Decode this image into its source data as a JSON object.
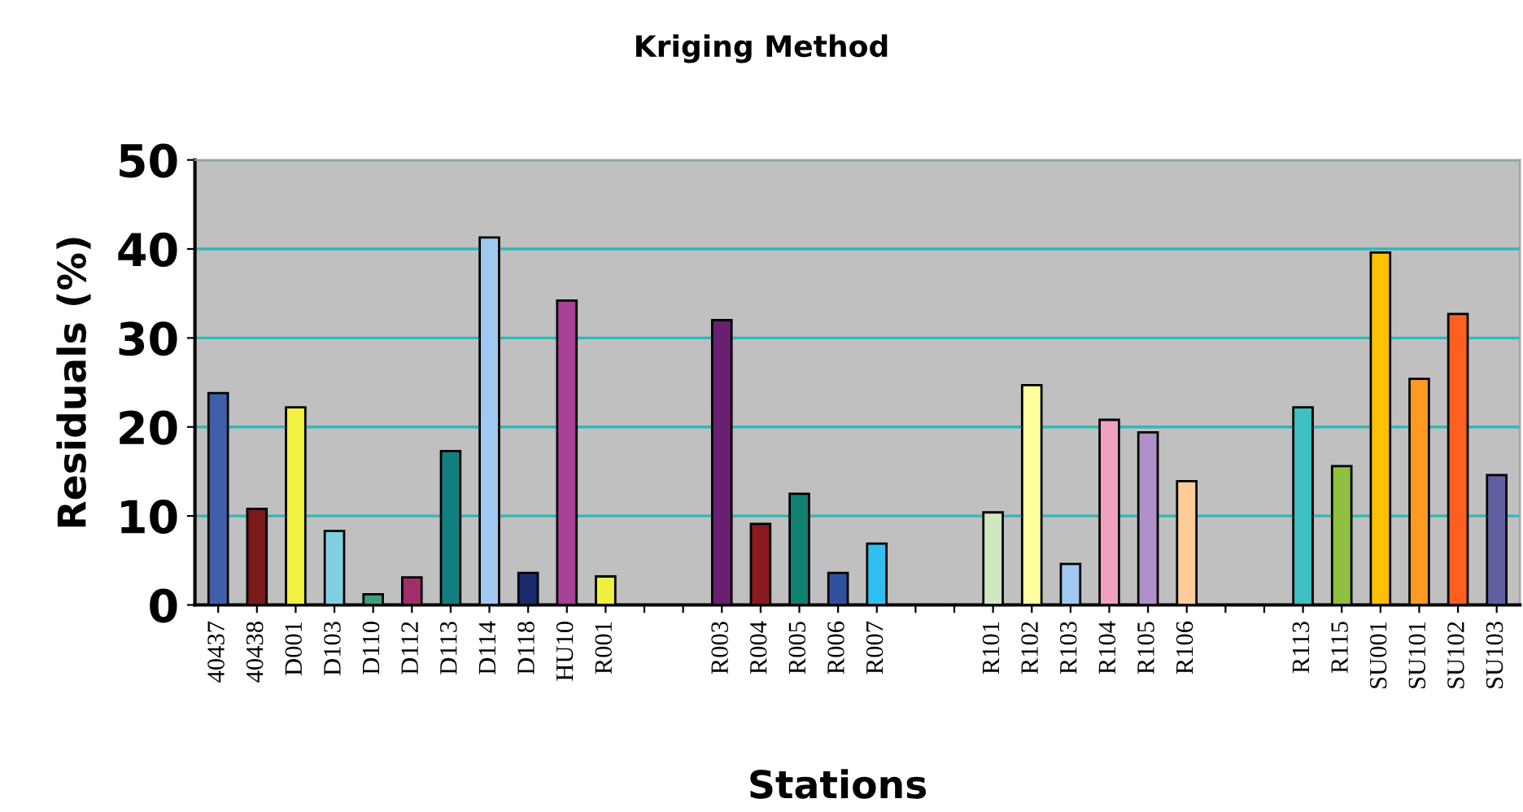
{
  "chart_data": {
    "type": "bar",
    "title": "Kriging Method",
    "xlabel": "Stations",
    "ylabel": "Residuals (%)",
    "categories": [
      "40437",
      "40438",
      "D001",
      "D103",
      "D110",
      "D112",
      "D113",
      "D114",
      "D118",
      "HU10",
      "R001",
      null,
      null,
      "R003",
      "R004",
      "R005",
      "R006",
      "R007",
      null,
      null,
      "R101",
      "R102",
      "R103",
      "R104",
      "R105",
      "R106",
      null,
      null,
      "R113",
      "R115",
      "SU001",
      "SU101",
      "SU102",
      "SU103"
    ],
    "values": [
      23.8,
      10.8,
      22.2,
      8.3,
      1.2,
      3.1,
      17.3,
      41.3,
      3.6,
      34.2,
      3.2,
      null,
      null,
      32.0,
      9.1,
      12.5,
      3.6,
      6.9,
      null,
      null,
      10.4,
      24.7,
      4.6,
      20.8,
      19.4,
      13.9,
      null,
      null,
      22.2,
      15.6,
      39.6,
      25.4,
      32.7,
      14.6
    ],
    "colors": [
      "#3f5fa8",
      "#7b1a1a",
      "#f0f040",
      "#80d0e0",
      "#3aa080",
      "#a0306a",
      "#128080",
      "#a0c8f0",
      "#1a2a6a",
      "#a84098",
      "#f0f040",
      "#c0c0c0",
      "#c0c0c0",
      "#6a2070",
      "#8a1a20",
      "#108070",
      "#3050a0",
      "#30c0f0",
      "#c0c0c0",
      "#c0c0c0",
      "#d0e8c0",
      "#ffffa0",
      "#a0c8f0",
      "#f0a0c0",
      "#b090c8",
      "#ffcc99",
      "#c0c0c0",
      "#c0c0c0",
      "#40c0c0",
      "#90c040",
      "#ffc000",
      "#ff9a20",
      "#ff6020",
      "#6060a0"
    ],
    "ylim": [
      0,
      50
    ],
    "yticks": [
      0,
      10,
      20,
      30,
      40,
      50
    ],
    "grid": "y",
    "legend": false
  }
}
